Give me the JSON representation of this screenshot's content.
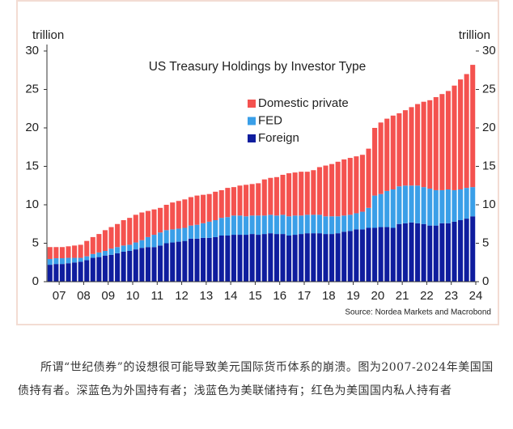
{
  "chart_data": {
    "type": "stacked-bar",
    "title": "US Treasury Holdings by Investor Type",
    "y_label": "trillion",
    "y2_label": "trillion",
    "source": "Source: Nordea Markets and Macrobond",
    "categories": [
      null,
      "07",
      null,
      null,
      null,
      "08",
      null,
      null,
      null,
      "09",
      null,
      null,
      null,
      "10",
      null,
      null,
      null,
      "11",
      null,
      null,
      null,
      "12",
      null,
      null,
      null,
      "13",
      null,
      null,
      null,
      "14",
      null,
      null,
      null,
      "15",
      null,
      null,
      null,
      "16",
      null,
      null,
      null,
      "17",
      null,
      null,
      null,
      "18",
      null,
      null,
      null,
      "19",
      null,
      null,
      null,
      "20",
      null,
      null,
      null,
      "21",
      null,
      null,
      null,
      "22",
      null,
      null,
      null,
      "23",
      null,
      null,
      null,
      "24"
    ],
    "series": [
      {
        "name": "Domestic private",
        "color": "#f4524f",
        "values": [
          1.55,
          1.45,
          1.45,
          1.5,
          1.6,
          1.7,
          2.0,
          2.2,
          2.4,
          2.7,
          2.8,
          3.0,
          3.3,
          3.5,
          3.6,
          3.6,
          3.4,
          3.3,
          3.2,
          3.3,
          3.5,
          3.6,
          3.7,
          3.7,
          3.8,
          3.7,
          3.6,
          3.7,
          3.6,
          3.8,
          3.7,
          3.9,
          4.1,
          4.1,
          4.2,
          4.7,
          4.8,
          5.0,
          5.2,
          5.6,
          5.6,
          5.7,
          5.6,
          5.8,
          6.2,
          6.6,
          6.8,
          7.1,
          7.3,
          7.4,
          7.4,
          7.4,
          7.7,
          8.8,
          9.3,
          9.4,
          9.6,
          9.5,
          9.8,
          10.2,
          10.6,
          11.1,
          11.5,
          12.1,
          12.5,
          12.8,
          13.6,
          14.3,
          14.8,
          15.9
        ]
      },
      {
        "name": "FED",
        "color": "#3a9fe8",
        "values": [
          0.75,
          0.75,
          0.75,
          0.7,
          0.6,
          0.5,
          0.5,
          0.5,
          0.6,
          0.6,
          0.8,
          0.8,
          0.8,
          0.8,
          0.9,
          1.0,
          1.3,
          1.6,
          1.7,
          1.7,
          1.7,
          1.7,
          1.7,
          1.7,
          1.8,
          1.9,
          2.1,
          2.2,
          2.3,
          2.4,
          2.5,
          2.5,
          2.4,
          2.4,
          2.5,
          2.4,
          2.4,
          2.4,
          2.5,
          2.5,
          2.5,
          2.4,
          2.4,
          2.4,
          2.4,
          2.3,
          2.3,
          2.2,
          2.1,
          2.1,
          2.1,
          2.3,
          2.6,
          4.2,
          4.3,
          4.7,
          5.0,
          4.9,
          4.9,
          4.8,
          4.9,
          4.8,
          4.8,
          4.6,
          4.3,
          4.4,
          4.1,
          4.0,
          4.0,
          3.8
        ]
      },
      {
        "name": "Foreign",
        "color": "#0f1d9e",
        "values": [
          2.2,
          2.3,
          2.3,
          2.4,
          2.5,
          2.6,
          2.8,
          3.1,
          3.2,
          3.4,
          3.5,
          3.7,
          3.9,
          4.0,
          4.2,
          4.4,
          4.5,
          4.5,
          4.7,
          5.0,
          5.1,
          5.2,
          5.3,
          5.6,
          5.6,
          5.7,
          5.7,
          5.8,
          6.0,
          6.0,
          6.1,
          6.1,
          6.1,
          6.2,
          6.1,
          6.2,
          6.3,
          6.2,
          6.2,
          6.0,
          6.1,
          6.2,
          6.3,
          6.3,
          6.3,
          6.2,
          6.2,
          6.3,
          6.5,
          6.6,
          6.8,
          6.8,
          7.0,
          7.0,
          7.1,
          7.1,
          7.0,
          7.5,
          7.6,
          7.7,
          7.6,
          7.5,
          7.3,
          7.3,
          7.6,
          7.6,
          7.8,
          8.0,
          8.2,
          8.5
        ]
      }
    ],
    "ylim": [
      0,
      30
    ],
    "yticks": [
      0,
      5,
      10,
      15,
      20,
      25,
      30
    ],
    "y2lim": [
      0,
      30
    ],
    "y2ticks": [
      0,
      5,
      10,
      15,
      20,
      25,
      30
    ],
    "grid": false
  },
  "caption": "所谓“世纪债券”的设想很可能导致美元国际货币体系的崩溃。图为2007-2024年美国国债持有者。深蓝色为外国持有者；浅蓝色为美联储持有；红色为美国国内私人持有者"
}
